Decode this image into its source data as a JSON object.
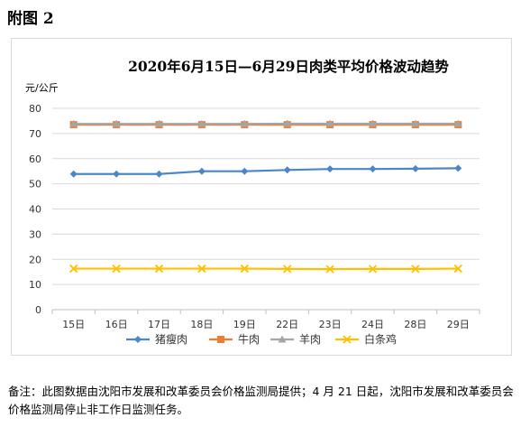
{
  "figure_label": "附图 2",
  "note": "备注：此图数据由沈阳市发展和改革委员会价格监测局提供；4 月 21 日起，沈阳市发展和改革委员会价格监测局停止非工作日监测任务。",
  "chart_data": {
    "type": "line",
    "title": "2020年6月15日—6月29日肉类平均价格波动趋势",
    "ylabel": "元/公斤",
    "xlabel": "",
    "categories": [
      "15日",
      "16日",
      "17日",
      "18日",
      "19日",
      "22日",
      "23日",
      "24日",
      "28日",
      "29日"
    ],
    "ylim": [
      0,
      80
    ],
    "yticks": [
      0,
      10,
      20,
      30,
      40,
      50,
      60,
      70,
      80
    ],
    "grid": true,
    "legend_position": "bottom",
    "series": [
      {
        "name": "猪瘦肉",
        "color": "#4a86c8",
        "marker": "diamond",
        "values": [
          53.9,
          53.9,
          53.9,
          55.0,
          55.0,
          55.5,
          55.9,
          55.9,
          56.0,
          56.2
        ]
      },
      {
        "name": "牛肉",
        "color": "#ed7d31",
        "marker": "square",
        "values": [
          73.5,
          73.5,
          73.5,
          73.5,
          73.5,
          73.5,
          73.5,
          73.5,
          73.5,
          73.5
        ]
      },
      {
        "name": "羊肉",
        "color": "#a5a5a5",
        "marker": "triangle",
        "values": [
          73.8,
          73.8,
          73.8,
          73.8,
          73.8,
          73.9,
          73.9,
          73.9,
          73.9,
          73.9
        ]
      },
      {
        "name": "白条鸡",
        "color": "#ffc000",
        "marker": "x",
        "values": [
          16.3,
          16.3,
          16.3,
          16.3,
          16.3,
          16.2,
          16.1,
          16.2,
          16.2,
          16.3
        ]
      }
    ]
  }
}
